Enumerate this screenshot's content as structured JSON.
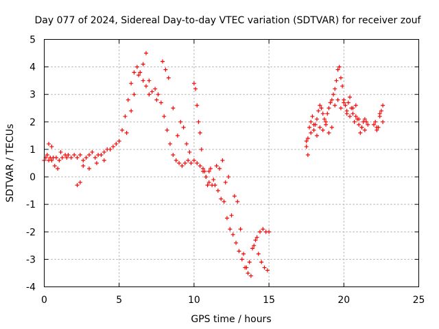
{
  "chart_data": {
    "type": "scatter",
    "title": "Day 077 of 2024, Sidereal Day-to-day VTEC variation (SDTVAR) for receiver zouf",
    "xlabel": "GPS time / hours",
    "ylabel": "SDTVAR / TECUs",
    "xlim": [
      0,
      25
    ],
    "ylim": [
      -4,
      5
    ],
    "xticks": [
      0,
      5,
      10,
      15,
      20,
      25
    ],
    "yticks": [
      -4,
      -3,
      -2,
      -1,
      0,
      1,
      2,
      3,
      4,
      5
    ],
    "xtick_labels": [
      "0",
      "5",
      "10",
      "15",
      "20",
      "25"
    ],
    "ytick_labels": [
      "-4",
      "-3",
      "-2",
      "-1",
      "0",
      "1",
      "2",
      "3",
      "4",
      "5"
    ],
    "grid": true,
    "marker": "plus",
    "series": [
      {
        "name": "SDTVAR",
        "color": "#ff0000",
        "x": [
          0.0,
          0.1,
          0.2,
          0.3,
          0.4,
          0.5,
          0.6,
          0.8,
          1.0,
          1.2,
          1.4,
          1.5,
          1.6,
          1.8,
          2.0,
          2.2,
          2.4,
          2.6,
          2.8,
          3.0,
          3.2,
          3.4,
          3.6,
          3.8,
          4.0,
          4.2,
          4.4,
          4.6,
          4.8,
          5.0,
          5.2,
          5.4,
          5.6,
          5.8,
          6.0,
          6.2,
          6.4,
          6.6,
          6.8,
          7.0,
          7.2,
          7.4,
          7.6,
          7.8,
          8.0,
          8.2,
          8.4,
          8.6,
          8.8,
          9.0,
          9.2,
          9.4,
          9.6,
          9.8,
          10.0,
          10.2,
          10.4,
          10.6,
          10.8,
          11.0,
          11.2,
          11.4,
          11.6,
          11.8,
          12.0,
          12.2,
          12.4,
          12.6,
          12.8,
          13.0,
          13.2,
          13.4,
          13.6,
          13.8,
          14.0,
          14.2,
          14.4,
          14.6,
          14.8,
          15.0,
          0.3,
          0.5,
          0.7,
          0.9,
          1.1,
          2.2,
          2.4,
          2.6,
          3.0,
          3.5,
          4.0,
          5.5,
          5.8,
          6.0,
          6.3,
          6.6,
          6.8,
          7.0,
          7.5,
          7.9,
          8.1,
          8.3,
          8.6,
          8.9,
          9.1,
          9.3,
          9.5,
          9.7,
          10.0,
          10.1,
          10.2,
          10.3,
          10.4,
          10.5,
          10.6,
          10.7,
          10.8,
          10.9,
          11.0,
          11.1,
          11.3,
          11.5,
          11.7,
          11.9,
          12.1,
          12.3,
          12.5,
          12.7,
          12.9,
          13.1,
          13.3,
          13.5,
          13.7,
          13.9,
          14.1,
          14.3,
          14.5,
          14.7,
          14.9,
          17.5,
          17.6,
          17.7,
          17.8,
          17.9,
          18.0,
          18.1,
          18.2,
          18.3,
          18.4,
          18.5,
          18.6,
          18.7,
          18.8,
          18.9,
          19.0,
          19.1,
          19.2,
          19.3,
          19.4,
          19.5,
          19.6,
          19.7,
          19.8,
          19.9,
          20.0,
          20.1,
          20.2,
          20.3,
          20.4,
          20.5,
          20.6,
          20.7,
          20.8,
          20.9,
          21.0,
          21.1,
          21.2,
          21.3,
          21.4,
          21.5,
          22.0,
          22.1,
          22.2,
          22.3,
          22.4,
          22.5,
          22.6,
          17.5,
          17.6,
          17.8,
          18.0,
          18.2,
          18.4,
          18.6,
          18.8,
          19.0,
          19.2,
          19.4,
          19.6,
          19.8,
          20.0,
          20.2,
          20.4,
          20.6,
          20.8,
          21.0,
          21.2,
          21.4,
          21.6,
          22.2,
          22.4,
          22.6
        ],
        "y": [
          0.6,
          0.7,
          0.8,
          0.6,
          0.7,
          0.6,
          0.7,
          0.7,
          0.6,
          0.7,
          0.8,
          0.7,
          0.8,
          0.7,
          0.8,
          0.7,
          0.8,
          0.6,
          0.7,
          0.8,
          0.9,
          0.7,
          0.8,
          0.8,
          0.9,
          1.0,
          1.0,
          1.1,
          1.2,
          1.3,
          1.7,
          2.2,
          2.8,
          3.4,
          3.8,
          4.0,
          3.8,
          3.5,
          3.3,
          3.0,
          3.1,
          3.2,
          3.0,
          2.7,
          2.2,
          1.7,
          1.2,
          0.8,
          0.6,
          0.5,
          0.4,
          0.5,
          0.6,
          0.5,
          0.6,
          0.5,
          0.4,
          0.2,
          0.0,
          -0.2,
          -0.3,
          -0.3,
          -0.5,
          -0.8,
          -0.9,
          -1.5,
          -1.9,
          -2.1,
          -2.4,
          -2.7,
          -3.0,
          -3.3,
          -3.5,
          -3.6,
          -2.5,
          -2.2,
          -2.0,
          -1.9,
          -2.0,
          -2.0,
          1.2,
          1.1,
          0.4,
          0.3,
          0.9,
          -0.3,
          -0.2,
          0.4,
          0.3,
          0.5,
          0.6,
          1.6,
          2.4,
          3.0,
          3.7,
          4.1,
          4.5,
          3.5,
          2.8,
          4.2,
          3.9,
          3.6,
          2.5,
          1.5,
          2.0,
          1.8,
          1.2,
          0.9,
          3.4,
          3.2,
          2.6,
          2.0,
          1.6,
          1.0,
          0.3,
          0.2,
          0.0,
          -0.3,
          0.2,
          0.3,
          -0.1,
          0.4,
          0.3,
          0.6,
          -0.2,
          0.0,
          -1.4,
          -0.7,
          -0.9,
          -1.9,
          -2.8,
          -3.3,
          -3.1,
          -2.6,
          -2.3,
          -2.8,
          -3.1,
          -3.3,
          -3.4,
          1.1,
          1.4,
          1.8,
          2.0,
          2.2,
          1.7,
          1.9,
          2.1,
          2.4,
          2.6,
          2.5,
          2.3,
          2.1,
          2.0,
          2.3,
          2.5,
          2.7,
          2.8,
          3.0,
          3.2,
          3.5,
          3.9,
          4.0,
          3.6,
          3.3,
          2.8,
          2.6,
          2.4,
          2.7,
          2.9,
          2.5,
          2.3,
          2.0,
          2.2,
          2.1,
          1.9,
          1.6,
          1.8,
          2.0,
          2.1,
          2.0,
          1.9,
          2.0,
          1.7,
          1.8,
          2.2,
          2.4,
          2.6,
          1.3,
          0.8,
          1.6,
          1.9,
          1.5,
          1.8,
          1.7,
          1.9,
          1.6,
          1.8,
          2.6,
          2.8,
          2.5,
          2.7,
          2.3,
          2.2,
          2.5,
          2.6,
          2.1,
          1.8,
          1.7,
          1.9,
          1.8,
          2.3,
          2.0
        ]
      }
    ]
  }
}
